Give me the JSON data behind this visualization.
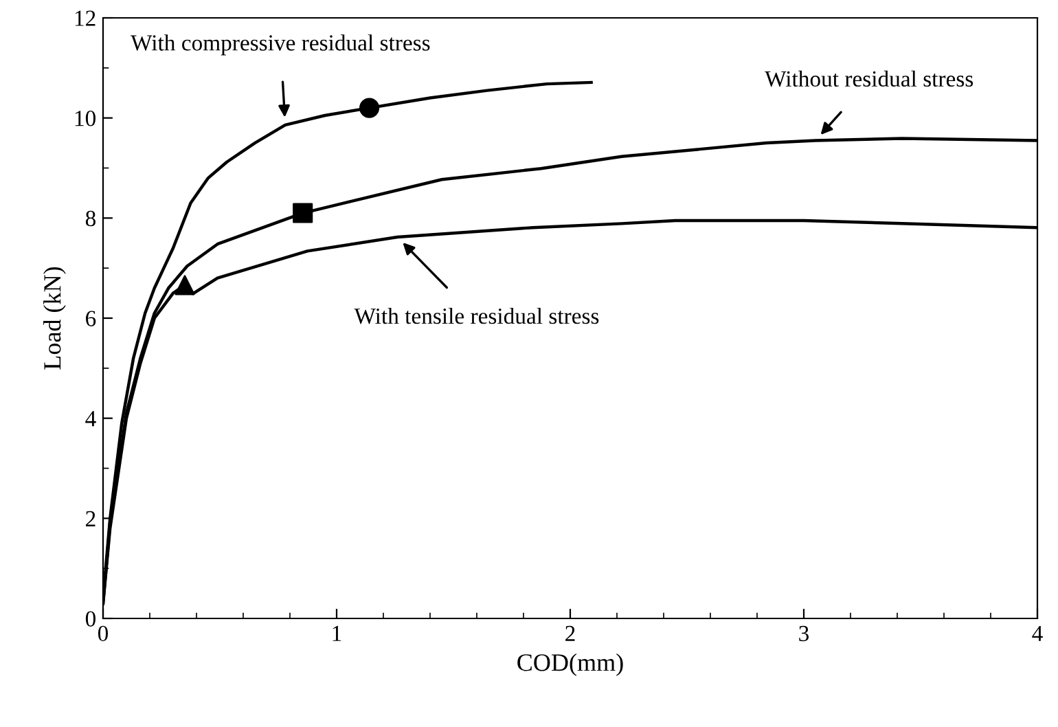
{
  "chart_data": {
    "type": "line",
    "xlabel": "COD(mm)",
    "ylabel": "Load (kN)",
    "xlim": [
      0,
      4
    ],
    "ylim": [
      0,
      12
    ],
    "xticks": [
      0,
      1,
      2,
      3,
      4
    ],
    "yticks": [
      0,
      2,
      4,
      6,
      8,
      10,
      12
    ],
    "grid": false,
    "marker": "none",
    "line_style": "solid",
    "series": [
      {
        "color": "#000000",
        "x": [
          0,
          0.03,
          0.08,
          0.13,
          0.18,
          0.22,
          0.26,
          0.3,
          0.375,
          0.45,
          0.53,
          0.65,
          0.78,
          0.95,
          1.14,
          1.4,
          1.645,
          1.9,
          2.09
        ],
        "values": [
          0.4,
          2.0,
          3.9,
          5.2,
          6.1,
          6.6,
          7.0,
          7.4,
          8.3,
          8.8,
          9.12,
          9.5,
          9.86,
          10.05,
          10.2,
          10.4,
          10.55,
          10.68,
          10.71
        ]
      },
      {
        "color": "#000000",
        "x": [
          0,
          0.03,
          0.1,
          0.16,
          0.22,
          0.28,
          0.36,
          0.49,
          0.855,
          1.45,
          1.876,
          2.22,
          2.84,
          3.05,
          3.42,
          4.0
        ],
        "values": [
          0.3,
          1.9,
          4.1,
          5.2,
          6.1,
          6.6,
          7.04,
          7.48,
          8.1,
          8.77,
          8.99,
          9.23,
          9.5,
          9.55,
          9.59,
          9.55
        ]
      },
      {
        "color": "#000000",
        "x": [
          0,
          0.03,
          0.1,
          0.16,
          0.22,
          0.3,
          0.35,
          0.385,
          0.49,
          0.875,
          1.26,
          1.84,
          2.22,
          2.45,
          3.0,
          3.42,
          4.0
        ],
        "values": [
          0.3,
          1.8,
          4.0,
          5.1,
          6.0,
          6.5,
          6.66,
          6.49,
          6.8,
          7.34,
          7.62,
          7.81,
          7.89,
          7.95,
          7.95,
          7.89,
          7.81
        ]
      },
      {
        "type": "scatter",
        "marker": "circle",
        "color": "#000000",
        "x": [
          1.14
        ],
        "values": [
          10.2
        ]
      },
      {
        "type": "scatter",
        "marker": "square",
        "color": "#000000",
        "x": [
          0.855
        ],
        "values": [
          8.1
        ]
      },
      {
        "type": "scatter",
        "marker": "triangle",
        "color": "#000000",
        "x": [
          0.35
        ],
        "values": [
          6.66
        ]
      }
    ],
    "annotations": [
      {
        "text": "With compressive residual stress",
        "x": 0.78,
        "y": 9.86
      },
      {
        "text": "Without residual stress",
        "x": 3.05,
        "y": 9.55
      },
      {
        "text": "With tensile residual stress",
        "x": 1.26,
        "y": 7.62
      }
    ]
  }
}
